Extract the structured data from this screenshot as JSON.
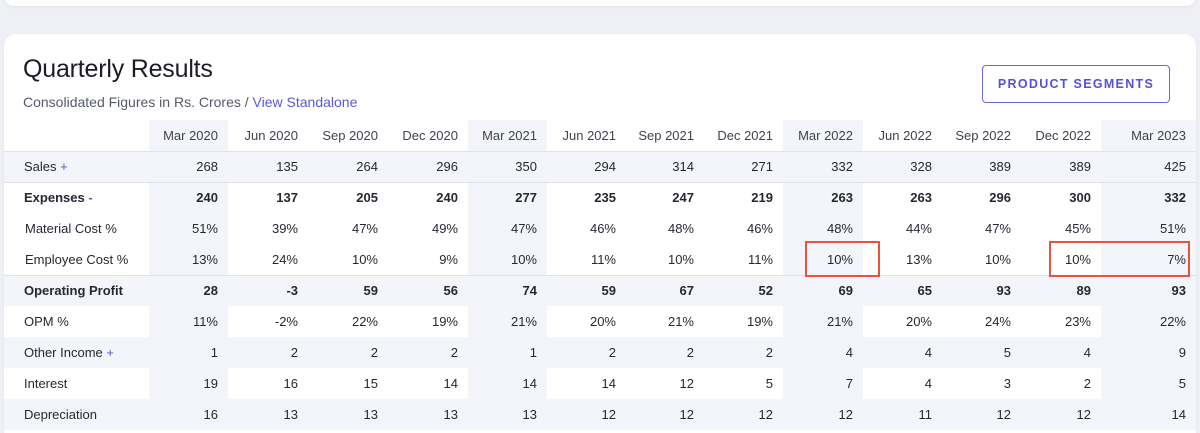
{
  "header": {
    "title": "Quarterly Results",
    "subtitle_prefix": "Consolidated Figures in Rs. Crores / ",
    "subtitle_link": "View Standalone",
    "segments_button": "PRODUCT SEGMENTS"
  },
  "columns": [
    "Mar 2020",
    "Jun 2020",
    "Sep 2020",
    "Dec 2020",
    "Mar 2021",
    "Jun 2021",
    "Sep 2021",
    "Dec 2021",
    "Mar 2022",
    "Jun 2022",
    "Sep 2022",
    "Dec 2022",
    "Mar 2023"
  ],
  "rows": {
    "sales": {
      "label": "Sales",
      "toggle": "+",
      "values": [
        "268",
        "135",
        "264",
        "296",
        "350",
        "294",
        "314",
        "271",
        "332",
        "328",
        "389",
        "389",
        "425"
      ]
    },
    "expenses": {
      "label": "Expenses",
      "toggle": "-",
      "values": [
        "240",
        "137",
        "205",
        "240",
        "277",
        "235",
        "247",
        "219",
        "263",
        "263",
        "296",
        "300",
        "332"
      ]
    },
    "material": {
      "label": "Material Cost %",
      "values": [
        "51%",
        "39%",
        "47%",
        "49%",
        "47%",
        "46%",
        "48%",
        "46%",
        "48%",
        "44%",
        "47%",
        "45%",
        "51%"
      ]
    },
    "employee": {
      "label": "Employee Cost %",
      "values": [
        "13%",
        "24%",
        "10%",
        "9%",
        "10%",
        "11%",
        "10%",
        "11%",
        "10%",
        "13%",
        "10%",
        "10%",
        "7%"
      ]
    },
    "op_profit": {
      "label": "Operating Profit",
      "values": [
        "28",
        "-3",
        "59",
        "56",
        "74",
        "59",
        "67",
        "52",
        "69",
        "65",
        "93",
        "89",
        "93"
      ]
    },
    "opm": {
      "label": "OPM %",
      "values": [
        "11%",
        "-2%",
        "22%",
        "19%",
        "21%",
        "20%",
        "21%",
        "19%",
        "21%",
        "20%",
        "24%",
        "23%",
        "22%"
      ]
    },
    "other_income": {
      "label": "Other Income",
      "toggle": "+",
      "values": [
        "1",
        "2",
        "2",
        "2",
        "1",
        "2",
        "2",
        "2",
        "4",
        "4",
        "5",
        "4",
        "9"
      ]
    },
    "interest": {
      "label": "Interest",
      "values": [
        "19",
        "16",
        "15",
        "14",
        "14",
        "14",
        "12",
        "5",
        "7",
        "4",
        "3",
        "2",
        "5"
      ]
    },
    "depreciation": {
      "label": "Depreciation",
      "values": [
        "16",
        "13",
        "13",
        "13",
        "13",
        "12",
        "12",
        "12",
        "12",
        "11",
        "12",
        "12",
        "14"
      ]
    }
  },
  "colors": {
    "accent": "#5b57d6",
    "highlight_box": "#e8533b"
  }
}
